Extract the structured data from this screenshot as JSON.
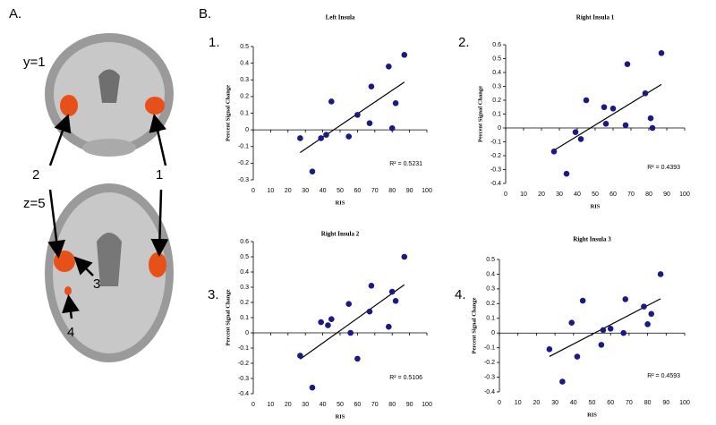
{
  "panel_a": {
    "label": "A.",
    "annotations": [
      "y=1",
      "2",
      "1",
      "z=5",
      "3",
      "4"
    ]
  },
  "panel_b_label": "B.",
  "chart_data": [
    {
      "type": "scatter",
      "panel_number": "1.",
      "title": "Left Insula",
      "x_label": "RIS",
      "y_label": "Percent Signal Change",
      "annotation": "R² = 0.5231",
      "color": "#1a1a80",
      "x": [
        27,
        34,
        39,
        42,
        45,
        55,
        60,
        67,
        68,
        78,
        80,
        82,
        87
      ],
      "values": [
        -0.05,
        -0.25,
        -0.05,
        -0.03,
        0.17,
        -0.04,
        0.09,
        0.04,
        0.26,
        0.38,
        0.01,
        0.16,
        0.45
      ],
      "xlim": [
        0,
        100
      ],
      "xticks": [
        0,
        10,
        20,
        30,
        40,
        50,
        60,
        70,
        80,
        90,
        100
      ],
      "ylim": [
        -0.3,
        0.5
      ],
      "yticks": [
        -0.3,
        -0.2,
        -0.1,
        0,
        0.1,
        0.2,
        0.3,
        0.4,
        0.5
      ],
      "trendline": true
    },
    {
      "type": "scatter",
      "panel_number": "2.",
      "title": "Right Insula 1",
      "x_label": "RIS",
      "y_label": "Percent Signal Change",
      "annotation": "R² = 0.4393",
      "color": "#1a1a80",
      "x": [
        27,
        34,
        39,
        42,
        45,
        55,
        56,
        60,
        67,
        68,
        78,
        81,
        82,
        87
      ],
      "values": [
        -0.17,
        -0.33,
        -0.03,
        -0.08,
        0.2,
        0.15,
        0.03,
        0.14,
        0.02,
        0.46,
        0.25,
        0.07,
        0,
        0.54
      ],
      "xlim": [
        0,
        100
      ],
      "xticks": [
        0,
        10,
        20,
        30,
        40,
        50,
        60,
        70,
        80,
        90,
        100
      ],
      "ylim": [
        -0.4,
        0.6
      ],
      "yticks": [
        -0.4,
        -0.3,
        -0.2,
        -0.1,
        0,
        0.1,
        0.2,
        0.3,
        0.4,
        0.5,
        0.6
      ],
      "trendline": true
    },
    {
      "type": "scatter",
      "panel_number": "3.",
      "title": "Right Insula 2",
      "x_label": "RIS",
      "y_label": "Percent Signal Change",
      "annotation": "R² = 0.5106",
      "color": "#1a1a80",
      "x": [
        27,
        34,
        39,
        43,
        45,
        55,
        56,
        60,
        67,
        68,
        78,
        80,
        82,
        87
      ],
      "values": [
        -0.15,
        -0.36,
        0.07,
        0.05,
        0.09,
        0.19,
        0,
        -0.17,
        0.14,
        0.31,
        0.04,
        0.27,
        0.21,
        0.5
      ],
      "xlim": [
        0,
        100
      ],
      "xticks": [
        0,
        10,
        20,
        30,
        40,
        50,
        60,
        70,
        80,
        90,
        100
      ],
      "ylim": [
        -0.4,
        0.6
      ],
      "yticks": [
        -0.4,
        -0.3,
        -0.2,
        -0.1,
        0,
        0.1,
        0.2,
        0.3,
        0.4,
        0.5,
        0.6
      ],
      "trendline": true
    },
    {
      "type": "scatter",
      "panel_number": "4.",
      "title": "Right Insula 3",
      "x_label": "RIS",
      "y_label": "Percent Signal Change",
      "annotation": "R² = 0.4593",
      "color": "#1a1a80",
      "x": [
        27,
        34,
        39,
        42,
        45,
        55,
        56,
        60,
        67,
        68,
        78,
        80,
        82,
        87
      ],
      "values": [
        -0.11,
        -0.33,
        0.07,
        -0.16,
        0.22,
        -0.08,
        0.02,
        0.03,
        0,
        0.23,
        0.18,
        0.06,
        0.13,
        0.4
      ],
      "xlim": [
        0,
        100
      ],
      "xticks": [
        0,
        10,
        20,
        30,
        40,
        50,
        60,
        70,
        80,
        90,
        100
      ],
      "ylim": [
        -0.4,
        0.5
      ],
      "yticks": [
        -0.4,
        -0.3,
        -0.2,
        -0.1,
        0,
        0.1,
        0.2,
        0.3,
        0.4,
        0.5
      ],
      "trendline": true
    }
  ]
}
